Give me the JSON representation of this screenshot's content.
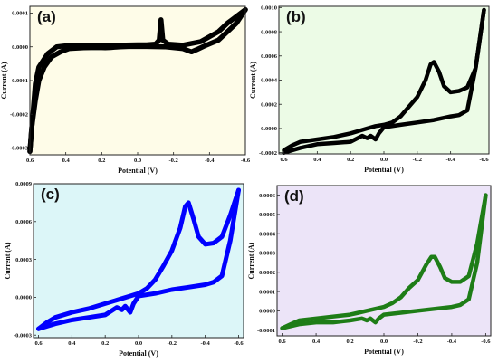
{
  "figure": {},
  "chart_data": [
    {
      "type": "line",
      "panel_label": "(a)",
      "xlabel": "Potential (V)",
      "ylabel": "Current (A)",
      "x_reversed": true,
      "xlim": [
        0.6,
        -0.6
      ],
      "ylim": [
        -0.00032,
        0.00012
      ],
      "xticks": [
        "0.6",
        "0.4",
        "0.2",
        "0.0",
        "-0.2",
        "-0.4",
        "-0.6"
      ],
      "yticks": [
        "-0.0003",
        "-0.0002",
        "-0.0001",
        "0.0000",
        "0.0001"
      ],
      "xtick_values": [
        0.6,
        0.4,
        0.2,
        0.0,
        -0.2,
        -0.4,
        -0.6
      ],
      "ytick_values": [
        -0.0003,
        -0.0002,
        -0.0001,
        0.0,
        0.0001
      ],
      "background": "#fefce8",
      "line_color": "#000000",
      "series": [
        {
          "x": [
            0.6,
            0.59,
            0.57,
            0.55,
            0.52,
            0.48,
            0.43,
            0.38,
            0.3,
            0.22,
            0.18,
            0.15,
            0.1,
            0.05,
            -0.05,
            -0.15,
            -0.25,
            -0.3,
            -0.33,
            -0.37,
            -0.45,
            -0.5,
            -0.55,
            -0.6
          ],
          "y": [
            -0.00031,
            -0.00024,
            -0.00016,
            -0.0001,
            -6e-05,
            -3e-05,
            -1.5e-05,
            -5e-06,
            -3e-06,
            -2e-06,
            -3e-06,
            -2e-06,
            0.0,
            1e-06,
            1e-06,
            0.0,
            -5e-06,
            -1.5e-05,
            -8e-06,
            2e-06,
            2e-05,
            4.5e-05,
            7e-05,
            0.00011
          ]
        },
        {
          "x": [
            -0.6,
            -0.55,
            -0.5,
            -0.45,
            -0.35,
            -0.25,
            -0.17,
            -0.14,
            -0.13,
            -0.12,
            -0.1,
            -0.05,
            0.0,
            0.1,
            0.2,
            0.3,
            0.4,
            0.45,
            0.5,
            0.55,
            0.57,
            0.6
          ],
          "y": [
            0.00011,
            9e-05,
            7e-05,
            4.5e-05,
            1.5e-05,
            5e-06,
            8e-06,
            2e-05,
            8e-05,
            2e-05,
            8e-06,
            6e-06,
            6e-06,
            5e-06,
            5e-06,
            5e-06,
            3e-06,
            0.0,
            -2e-05,
            -6e-05,
            -0.00011,
            -0.00031
          ]
        }
      ]
    },
    {
      "type": "line",
      "panel_label": "(b)",
      "xlabel": "Potential (V)",
      "ylabel": "Current (A)",
      "x_reversed": true,
      "xlim": [
        0.63,
        -0.63
      ],
      "ylim": [
        -0.00021,
        0.00101
      ],
      "xticks": [
        "0.6",
        "0.4",
        "0.2",
        "0.0",
        "-0.2",
        "-0.4",
        "-0.6"
      ],
      "yticks": [
        "-0.0002",
        "0.0000",
        "0.0002",
        "0.0004",
        "0.0006",
        "0.0008",
        "0.0010"
      ],
      "xtick_values": [
        0.6,
        0.4,
        0.2,
        0.0,
        -0.2,
        -0.4,
        -0.6
      ],
      "ytick_values": [
        -0.0002,
        0.0,
        0.0002,
        0.0004,
        0.0006,
        0.0008,
        0.001
      ],
      "background": "#ecfbe6",
      "line_color": "#000000",
      "series": [
        {
          "x": [
            0.6,
            0.55,
            0.5,
            0.4,
            0.3,
            0.2,
            0.15,
            0.1,
            0.05,
            0.0,
            -0.05,
            -0.1,
            -0.15,
            -0.2,
            -0.25,
            -0.28,
            -0.3,
            -0.33,
            -0.36,
            -0.4,
            -0.45,
            -0.5,
            -0.55,
            -0.6
          ],
          "y": [
            -0.00018,
            -0.00014,
            -0.00011,
            -9e-05,
            -7e-05,
            -4e-05,
            -2e-05,
            0.0,
            2e-05,
            3e-05,
            5e-05,
            0.0001,
            0.00018,
            0.00026,
            0.0004,
            0.00053,
            0.00055,
            0.00047,
            0.00035,
            0.0003,
            0.00031,
            0.00034,
            0.0005,
            0.00098
          ]
        },
        {
          "x": [
            -0.6,
            -0.55,
            -0.5,
            -0.45,
            -0.4,
            -0.3,
            -0.2,
            -0.1,
            0.0,
            0.03,
            0.05,
            0.08,
            0.1,
            0.13,
            0.2,
            0.3,
            0.4,
            0.5,
            0.6
          ],
          "y": [
            0.00098,
            0.0005,
            0.00015,
            0.00011,
            0.0001,
            7e-05,
            5e-05,
            3e-05,
            1e-05,
            -4e-05,
            -9e-05,
            -6e-05,
            -8e-05,
            -6e-05,
            -0.00011,
            -0.00012,
            -0.00013,
            -0.00016,
            -0.0002
          ]
        }
      ]
    },
    {
      "type": "line",
      "panel_label": "(c)",
      "xlabel": "Potential (V)",
      "ylabel": "Current (A)",
      "x_reversed": true,
      "xlim": [
        0.63,
        -0.63
      ],
      "ylim": [
        -0.00032,
        0.0009
      ],
      "xticks": [
        "0.6",
        "0.4",
        "0.2",
        "0.0",
        "-0.2",
        "-0.4",
        "-0.6"
      ],
      "yticks": [
        "-0.0003",
        "0.0000",
        "0.0003",
        "0.0006",
        "0.0009"
      ],
      "xtick_values": [
        0.6,
        0.4,
        0.2,
        0.0,
        -0.2,
        -0.4,
        -0.6
      ],
      "ytick_values": [
        -0.0003,
        0.0,
        0.0003,
        0.0006,
        0.0009
      ],
      "background": "#dcf6f8",
      "line_color": "#0000ff",
      "series": [
        {
          "x": [
            0.6,
            0.55,
            0.5,
            0.4,
            0.3,
            0.2,
            0.15,
            0.1,
            0.05,
            0.0,
            -0.05,
            -0.1,
            -0.15,
            -0.2,
            -0.25,
            -0.28,
            -0.3,
            -0.33,
            -0.36,
            -0.4,
            -0.45,
            -0.5,
            -0.55,
            -0.6
          ],
          "y": [
            -0.00025,
            -0.0002,
            -0.00016,
            -0.00012,
            -9e-05,
            -5e-05,
            -3e-05,
            -1e-05,
            1e-05,
            3e-05,
            7e-05,
            0.00014,
            0.00025,
            0.00037,
            0.00055,
            0.00072,
            0.00075,
            0.00062,
            0.00048,
            0.00042,
            0.00043,
            0.00048,
            0.00065,
            0.00085
          ]
        },
        {
          "x": [
            -0.6,
            -0.55,
            -0.5,
            -0.45,
            -0.4,
            -0.3,
            -0.2,
            -0.1,
            0.0,
            0.03,
            0.05,
            0.08,
            0.1,
            0.13,
            0.2,
            0.3,
            0.4,
            0.5,
            0.6
          ],
          "y": [
            0.00085,
            0.00045,
            0.00017,
            0.00012,
            0.0001,
            8e-05,
            6e-05,
            3e-05,
            1e-05,
            -5e-05,
            -0.00012,
            -7e-05,
            -0.0001,
            -8e-05,
            -0.00014,
            -0.00016,
            -0.00018,
            -0.00021,
            -0.00025
          ]
        }
      ]
    },
    {
      "type": "line",
      "panel_label": "(d)",
      "xlabel": "Potential (V)",
      "ylabel": "Current (A)",
      "x_reversed": true,
      "xlim": [
        0.63,
        -0.63
      ],
      "ylim": [
        -0.00013,
        0.00065
      ],
      "xticks": [
        "0.6",
        "0.4",
        "0.2",
        "0.0",
        "-0.2",
        "-0.4",
        "-0.6"
      ],
      "yticks": [
        "-0.0001",
        "0.0000",
        "0.0001",
        "0.0002",
        "0.0003",
        "0.0004",
        "0.0005",
        "0.0006"
      ],
      "xtick_values": [
        0.6,
        0.4,
        0.2,
        0.0,
        -0.2,
        -0.4,
        -0.6
      ],
      "ytick_values": [
        -0.0001,
        0.0,
        0.0001,
        0.0002,
        0.0003,
        0.0004,
        0.0005,
        0.0006
      ],
      "background": "#ece4f8",
      "line_color": "#1e7d17",
      "series": [
        {
          "x": [
            0.6,
            0.55,
            0.5,
            0.4,
            0.3,
            0.2,
            0.15,
            0.1,
            0.05,
            0.0,
            -0.05,
            -0.1,
            -0.15,
            -0.2,
            -0.25,
            -0.28,
            -0.3,
            -0.33,
            -0.36,
            -0.4,
            -0.45,
            -0.5,
            -0.55,
            -0.6
          ],
          "y": [
            -9e-05,
            -7e-05,
            -5e-05,
            -4e-05,
            -3e-05,
            -2e-05,
            -1e-05,
            0.0,
            1e-05,
            2e-05,
            4e-05,
            7e-05,
            0.00012,
            0.00016,
            0.00024,
            0.00028,
            0.00028,
            0.00023,
            0.00017,
            0.00015,
            0.00015,
            0.00018,
            0.00035,
            0.0006
          ]
        },
        {
          "x": [
            -0.6,
            -0.55,
            -0.5,
            -0.45,
            -0.4,
            -0.3,
            -0.2,
            -0.1,
            0.0,
            0.03,
            0.05,
            0.08,
            0.1,
            0.13,
            0.2,
            0.3,
            0.4,
            0.5,
            0.6
          ],
          "y": [
            0.0006,
            0.00025,
            6e-05,
            3e-05,
            2e-05,
            1e-05,
            0.0,
            -1e-05,
            -2e-05,
            -4e-05,
            -6e-05,
            -4e-05,
            -5e-05,
            -4e-05,
            -5e-05,
            -6e-05,
            -6e-05,
            -7e-05,
            -9e-05
          ]
        }
      ]
    }
  ]
}
